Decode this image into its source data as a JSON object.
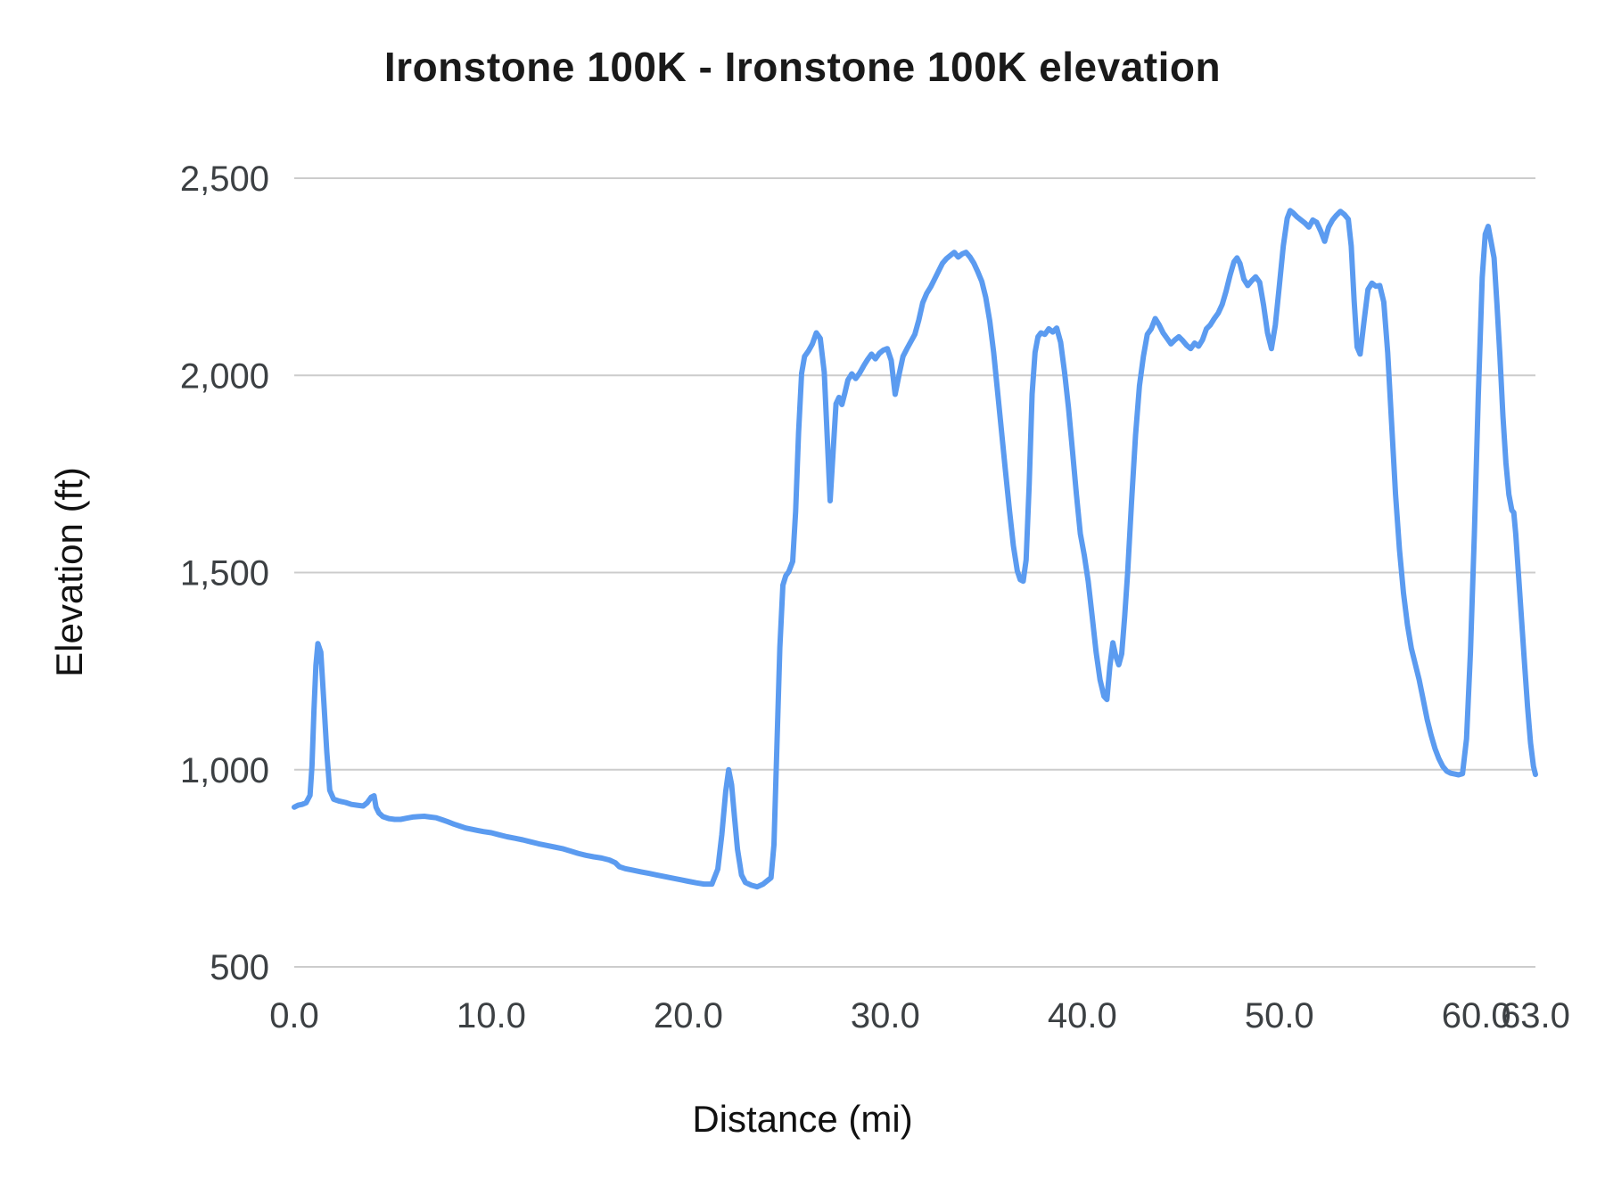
{
  "chart_data": {
    "type": "line",
    "title": "Ironstone 100K - Ironstone 100K elevation",
    "xlabel": "Distance (mi)",
    "ylabel": "Elevation (ft)",
    "xlim": [
      0,
      63
    ],
    "ylim": [
      500,
      2500
    ],
    "grid": "horizontal",
    "legend": "none",
    "line_color": "#5b9bf0",
    "grid_color": "#cccccc",
    "tick_color": "#3c4043",
    "x_ticks": [
      {
        "v": 0,
        "label": "0.0"
      },
      {
        "v": 10,
        "label": "10.0"
      },
      {
        "v": 20,
        "label": "20.0"
      },
      {
        "v": 30,
        "label": "30.0"
      },
      {
        "v": 40,
        "label": "40.0"
      },
      {
        "v": 50,
        "label": "50.0"
      },
      {
        "v": 60,
        "label": "60.0"
      },
      {
        "v": 63,
        "label": "63.0"
      }
    ],
    "y_ticks": [
      {
        "v": 500,
        "label": "500"
      },
      {
        "v": 1000,
        "label": "1,000"
      },
      {
        "v": 1500,
        "label": "1,500"
      },
      {
        "v": 2000,
        "label": "2,000"
      },
      {
        "v": 2500,
        "label": "2,500"
      }
    ],
    "series": [
      {
        "points": [
          [
            0,
            905
          ],
          [
            0.2,
            910
          ],
          [
            0.4,
            912
          ],
          [
            0.6,
            916
          ],
          [
            0.8,
            935
          ],
          [
            0.9,
            1010
          ],
          [
            1,
            1150
          ],
          [
            1.1,
            1265
          ],
          [
            1.2,
            1320
          ],
          [
            1.35,
            1298
          ],
          [
            1.5,
            1175
          ],
          [
            1.65,
            1045
          ],
          [
            1.8,
            948
          ],
          [
            2,
            925
          ],
          [
            2.3,
            920
          ],
          [
            2.6,
            917
          ],
          [
            2.9,
            912
          ],
          [
            3.2,
            910
          ],
          [
            3.5,
            908
          ],
          [
            3.7,
            916
          ],
          [
            3.9,
            930
          ],
          [
            4.05,
            934
          ],
          [
            4.15,
            905
          ],
          [
            4.3,
            890
          ],
          [
            4.5,
            881
          ],
          [
            4.8,
            876
          ],
          [
            5.1,
            874
          ],
          [
            5.4,
            874
          ],
          [
            5.7,
            877
          ],
          [
            6,
            880
          ],
          [
            6.3,
            881
          ],
          [
            6.6,
            882
          ],
          [
            6.9,
            880
          ],
          [
            7.2,
            878
          ],
          [
            7.5,
            873
          ],
          [
            7.8,
            868
          ],
          [
            8.1,
            862
          ],
          [
            8.4,
            857
          ],
          [
            8.7,
            852
          ],
          [
            9,
            849
          ],
          [
            9.3,
            846
          ],
          [
            9.6,
            843
          ],
          [
            10,
            840
          ],
          [
            10.4,
            835
          ],
          [
            10.8,
            830
          ],
          [
            11.2,
            826
          ],
          [
            11.6,
            822
          ],
          [
            12,
            817
          ],
          [
            12.4,
            812
          ],
          [
            12.8,
            808
          ],
          [
            13.2,
            804
          ],
          [
            13.6,
            800
          ],
          [
            14,
            794
          ],
          [
            14.4,
            788
          ],
          [
            14.8,
            783
          ],
          [
            15.2,
            779
          ],
          [
            15.6,
            776
          ],
          [
            16,
            771
          ],
          [
            16.3,
            764
          ],
          [
            16.5,
            754
          ],
          [
            16.8,
            749
          ],
          [
            17.2,
            745
          ],
          [
            17.6,
            741
          ],
          [
            18,
            737
          ],
          [
            18.4,
            733
          ],
          [
            18.8,
            729
          ],
          [
            19.2,
            725
          ],
          [
            19.6,
            721
          ],
          [
            20,
            717
          ],
          [
            20.4,
            713
          ],
          [
            20.8,
            710
          ],
          [
            21.2,
            710
          ],
          [
            21.5,
            748
          ],
          [
            21.7,
            835
          ],
          [
            21.9,
            945
          ],
          [
            22.05,
            1000
          ],
          [
            22.2,
            962
          ],
          [
            22.35,
            878
          ],
          [
            22.5,
            798
          ],
          [
            22.7,
            733
          ],
          [
            22.9,
            714
          ],
          [
            23.2,
            707
          ],
          [
            23.5,
            703
          ],
          [
            23.8,
            710
          ],
          [
            24,
            718
          ],
          [
            24.2,
            726
          ],
          [
            24.35,
            810
          ],
          [
            24.5,
            1060
          ],
          [
            24.65,
            1310
          ],
          [
            24.8,
            1468
          ],
          [
            24.95,
            1492
          ],
          [
            25.1,
            1502
          ],
          [
            25.3,
            1528
          ],
          [
            25.45,
            1655
          ],
          [
            25.6,
            1855
          ],
          [
            25.75,
            2005
          ],
          [
            25.9,
            2048
          ],
          [
            26.1,
            2062
          ],
          [
            26.3,
            2080
          ],
          [
            26.5,
            2108
          ],
          [
            26.7,
            2094
          ],
          [
            26.9,
            2008
          ],
          [
            27.05,
            1845
          ],
          [
            27.2,
            1682
          ],
          [
            27.35,
            1805
          ],
          [
            27.5,
            1928
          ],
          [
            27.65,
            1944
          ],
          [
            27.8,
            1926
          ],
          [
            27.95,
            1956
          ],
          [
            28.1,
            1988
          ],
          [
            28.3,
            2004
          ],
          [
            28.5,
            1992
          ],
          [
            28.7,
            2006
          ],
          [
            28.9,
            2024
          ],
          [
            29.1,
            2040
          ],
          [
            29.3,
            2054
          ],
          [
            29.5,
            2042
          ],
          [
            29.7,
            2056
          ],
          [
            29.9,
            2064
          ],
          [
            30.1,
            2068
          ],
          [
            30.3,
            2038
          ],
          [
            30.5,
            1952
          ],
          [
            30.7,
            2002
          ],
          [
            30.9,
            2048
          ],
          [
            31.1,
            2068
          ],
          [
            31.3,
            2086
          ],
          [
            31.5,
            2104
          ],
          [
            31.7,
            2140
          ],
          [
            31.9,
            2184
          ],
          [
            32.1,
            2208
          ],
          [
            32.3,
            2224
          ],
          [
            32.5,
            2244
          ],
          [
            32.7,
            2264
          ],
          [
            32.9,
            2284
          ],
          [
            33.1,
            2296
          ],
          [
            33.3,
            2304
          ],
          [
            33.5,
            2312
          ],
          [
            33.7,
            2300
          ],
          [
            33.9,
            2308
          ],
          [
            34.1,
            2312
          ],
          [
            34.3,
            2300
          ],
          [
            34.5,
            2284
          ],
          [
            34.7,
            2262
          ],
          [
            34.9,
            2238
          ],
          [
            35.1,
            2198
          ],
          [
            35.3,
            2138
          ],
          [
            35.5,
            2058
          ],
          [
            35.7,
            1958
          ],
          [
            35.9,
            1858
          ],
          [
            36.1,
            1758
          ],
          [
            36.3,
            1658
          ],
          [
            36.5,
            1568
          ],
          [
            36.7,
            1504
          ],
          [
            36.85,
            1482
          ],
          [
            37,
            1478
          ],
          [
            37.15,
            1532
          ],
          [
            37.3,
            1722
          ],
          [
            37.45,
            1952
          ],
          [
            37.6,
            2058
          ],
          [
            37.75,
            2098
          ],
          [
            37.9,
            2108
          ],
          [
            38.1,
            2104
          ],
          [
            38.3,
            2118
          ],
          [
            38.5,
            2110
          ],
          [
            38.7,
            2120
          ],
          [
            38.9,
            2084
          ],
          [
            39.1,
            2008
          ],
          [
            39.3,
            1918
          ],
          [
            39.5,
            1808
          ],
          [
            39.7,
            1698
          ],
          [
            39.9,
            1598
          ],
          [
            40.1,
            1544
          ],
          [
            40.3,
            1478
          ],
          [
            40.5,
            1388
          ],
          [
            40.7,
            1298
          ],
          [
            40.9,
            1228
          ],
          [
            41.1,
            1186
          ],
          [
            41.25,
            1178
          ],
          [
            41.4,
            1262
          ],
          [
            41.55,
            1322
          ],
          [
            41.7,
            1288
          ],
          [
            41.85,
            1266
          ],
          [
            42,
            1294
          ],
          [
            42.15,
            1388
          ],
          [
            42.3,
            1498
          ],
          [
            42.5,
            1678
          ],
          [
            42.7,
            1848
          ],
          [
            42.9,
            1974
          ],
          [
            43.1,
            2048
          ],
          [
            43.3,
            2104
          ],
          [
            43.5,
            2118
          ],
          [
            43.7,
            2144
          ],
          [
            43.9,
            2128
          ],
          [
            44.1,
            2108
          ],
          [
            44.3,
            2094
          ],
          [
            44.5,
            2080
          ],
          [
            44.7,
            2090
          ],
          [
            44.9,
            2098
          ],
          [
            45.1,
            2088
          ],
          [
            45.3,
            2076
          ],
          [
            45.5,
            2068
          ],
          [
            45.7,
            2082
          ],
          [
            45.9,
            2074
          ],
          [
            46.1,
            2090
          ],
          [
            46.3,
            2118
          ],
          [
            46.5,
            2128
          ],
          [
            46.7,
            2144
          ],
          [
            46.9,
            2158
          ],
          [
            47.1,
            2180
          ],
          [
            47.3,
            2214
          ],
          [
            47.5,
            2254
          ],
          [
            47.7,
            2288
          ],
          [
            47.85,
            2298
          ],
          [
            48,
            2284
          ],
          [
            48.2,
            2244
          ],
          [
            48.4,
            2228
          ],
          [
            48.6,
            2240
          ],
          [
            48.8,
            2250
          ],
          [
            49,
            2236
          ],
          [
            49.2,
            2178
          ],
          [
            49.4,
            2108
          ],
          [
            49.6,
            2068
          ],
          [
            49.8,
            2128
          ],
          [
            50,
            2228
          ],
          [
            50.2,
            2328
          ],
          [
            50.4,
            2398
          ],
          [
            50.55,
            2418
          ],
          [
            50.7,
            2412
          ],
          [
            50.9,
            2402
          ],
          [
            51.1,
            2394
          ],
          [
            51.3,
            2386
          ],
          [
            51.5,
            2376
          ],
          [
            51.7,
            2394
          ],
          [
            51.9,
            2388
          ],
          [
            52.1,
            2366
          ],
          [
            52.3,
            2340
          ],
          [
            52.5,
            2376
          ],
          [
            52.7,
            2394
          ],
          [
            52.9,
            2406
          ],
          [
            53.1,
            2416
          ],
          [
            53.3,
            2408
          ],
          [
            53.5,
            2396
          ],
          [
            53.65,
            2328
          ],
          [
            53.8,
            2188
          ],
          [
            53.95,
            2072
          ],
          [
            54.1,
            2054
          ],
          [
            54.3,
            2138
          ],
          [
            54.5,
            2218
          ],
          [
            54.7,
            2234
          ],
          [
            54.9,
            2226
          ],
          [
            55.1,
            2228
          ],
          [
            55.3,
            2186
          ],
          [
            55.5,
            2058
          ],
          [
            55.7,
            1878
          ],
          [
            55.9,
            1698
          ],
          [
            56.1,
            1558
          ],
          [
            56.3,
            1448
          ],
          [
            56.5,
            1368
          ],
          [
            56.7,
            1308
          ],
          [
            56.9,
            1268
          ],
          [
            57.1,
            1228
          ],
          [
            57.3,
            1178
          ],
          [
            57.5,
            1128
          ],
          [
            57.7,
            1088
          ],
          [
            57.9,
            1054
          ],
          [
            58.1,
            1028
          ],
          [
            58.3,
            1008
          ],
          [
            58.5,
            996
          ],
          [
            58.7,
            991
          ],
          [
            58.9,
            989
          ],
          [
            59.1,
            987
          ],
          [
            59.3,
            990
          ],
          [
            59.5,
            1078
          ],
          [
            59.7,
            1298
          ],
          [
            59.9,
            1598
          ],
          [
            60.1,
            1948
          ],
          [
            60.3,
            2248
          ],
          [
            60.45,
            2358
          ],
          [
            60.6,
            2378
          ],
          [
            60.75,
            2338
          ],
          [
            60.9,
            2298
          ],
          [
            61.05,
            2178
          ],
          [
            61.2,
            2048
          ],
          [
            61.35,
            1898
          ],
          [
            61.5,
            1778
          ],
          [
            61.65,
            1698
          ],
          [
            61.8,
            1658
          ],
          [
            61.9,
            1652
          ],
          [
            62,
            1598
          ],
          [
            62.15,
            1488
          ],
          [
            62.3,
            1378
          ],
          [
            62.45,
            1268
          ],
          [
            62.6,
            1158
          ],
          [
            62.75,
            1068
          ],
          [
            62.9,
            1008
          ],
          [
            63,
            988
          ]
        ]
      }
    ]
  }
}
